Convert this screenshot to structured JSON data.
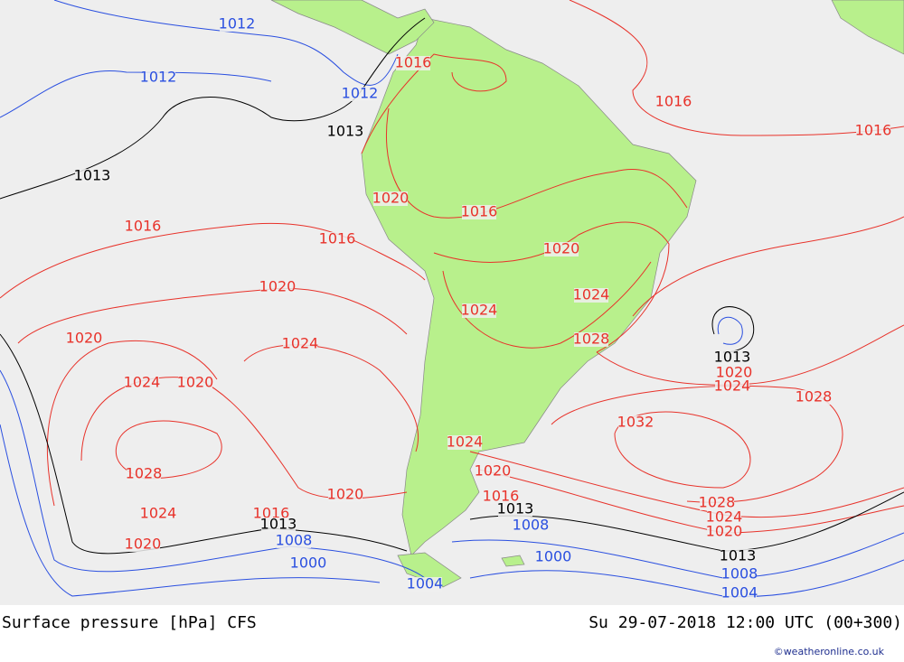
{
  "map": {
    "isobar_labels": [
      "1012",
      "1012",
      "1012",
      "1013",
      "1013",
      "1016",
      "1016",
      "1016",
      "1020",
      "1016",
      "1016",
      "1016",
      "1020",
      "1020",
      "1024",
      "1024",
      "1020",
      "1024",
      "1028",
      "1013",
      "1020",
      "1024",
      "1020",
      "1024",
      "1028",
      "1032",
      "1024",
      "1028",
      "1020",
      "1020",
      "1016",
      "1013",
      "1028",
      "1024",
      "1016",
      "1024",
      "1013",
      "1008",
      "1020",
      "1008",
      "1020",
      "1000",
      "1013",
      "1000",
      "1008",
      "1004",
      "1004"
    ]
  },
  "footer": {
    "title": "Surface pressure [hPa] CFS",
    "datetime": "Su 29-07-2018 12:00 UTC (00+300)",
    "credit": "©weatheronline.co.uk"
  }
}
